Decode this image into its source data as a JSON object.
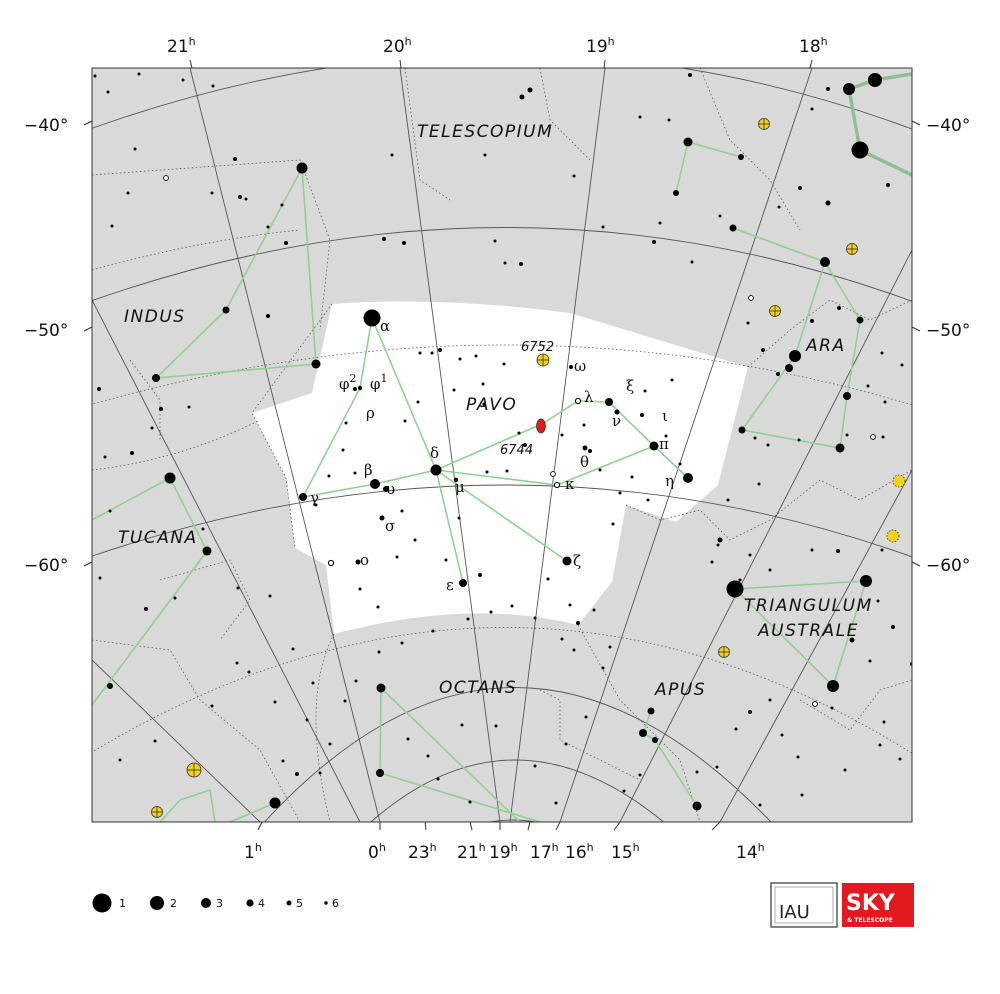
{
  "constellations": {
    "main": "PAVO",
    "neighbors": [
      "TELESCOPIUM",
      "INDUS",
      "ARA",
      "TUCANA",
      "TRIANGULUM",
      "AUSTRALE",
      "OCTANS",
      "APUS"
    ]
  },
  "ra_top": [
    "21",
    "20",
    "19",
    "18"
  ],
  "ra_bottom": [
    "1",
    "0",
    "23",
    "21",
    "19",
    "17",
    "16",
    "15",
    "14"
  ],
  "ra_suffix": "h",
  "dec_labels": [
    "−40°",
    "−50°",
    "−60°"
  ],
  "deep_sky": [
    "6752",
    "6744"
  ],
  "star_labels": {
    "alpha": "α",
    "beta": "β",
    "gamma": "γ",
    "delta": "δ",
    "epsilon": "ε",
    "zeta": "ζ",
    "eta": "η",
    "theta": "θ",
    "iota": "ι",
    "kappa": "κ",
    "lambda": "λ",
    "mu": "μ",
    "nu": "ν",
    "xi": "ξ",
    "omicron": "ο",
    "pi": "π",
    "rho": "ρ",
    "sigma": "σ",
    "upsilon": "υ",
    "omega": "ω",
    "phi1": "φ",
    "phi1_sup": "1",
    "phi2": "φ",
    "phi2_sup": "2"
  },
  "legend": {
    "title": "",
    "magnitudes": [
      "1",
      "2",
      "3",
      "4",
      "5",
      "6"
    ]
  },
  "logos": {
    "iau": "IAU",
    "sky": "SKY",
    "sky_tagline": "& TELESCOPE"
  },
  "colors": {
    "background": "#d9d9d9",
    "highlight": "#ffffff",
    "grid": "#555555",
    "stick": "#8fd28f",
    "star": "#000000",
    "open_cluster": "#f2d21c",
    "galaxy": "#e01b1b",
    "logo_red": "#e2191f"
  }
}
